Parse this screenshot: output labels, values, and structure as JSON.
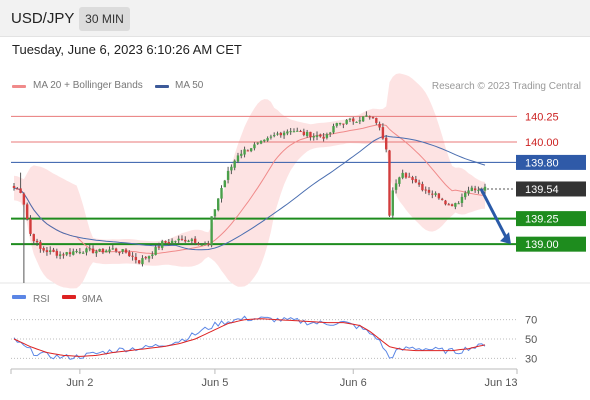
{
  "header": {
    "symbol": "USD/JPY",
    "timeframe": "30 MIN",
    "timestamp": "Tuesday, June 6, 2023 6:10:26 AM CET"
  },
  "legend": {
    "ma20_label": "MA 20 + Bollinger Bands",
    "ma50_label": "MA 50",
    "copyright": "Research © 2023 Trading Central"
  },
  "indicator_legend": {
    "rsi_label": "RSI",
    "ma9_label": "9MA"
  },
  "colors": {
    "resistance": "#e8797a",
    "support": "#1e8c1e",
    "pivot": "#2f5aa8",
    "last_price_bg": "#333333",
    "candle_up": "#4aa04a",
    "candle_down": "#d23c3c",
    "ma20": "#f08a8a",
    "ma50": "#4a6eb0",
    "bollinger": "#fde0e0",
    "rsi": "#5b86e5",
    "rsi_ma": "#dd2222",
    "forecast_arrow": "#2a5aa8"
  },
  "chart_data": [
    {
      "type": "candlestick",
      "title": "USD/JPY 30 MIN",
      "x_ticks": [
        "Jun 2",
        "Jun 5",
        "Jun 6",
        "Jun 13"
      ],
      "ylim": [
        138.62,
        140.44
      ],
      "levels": [
        {
          "value": 140.25,
          "label": "140.25",
          "kind": "resistance"
        },
        {
          "value": 140.0,
          "label": "140.00",
          "kind": "resistance"
        },
        {
          "value": 139.8,
          "label": "139.80",
          "kind": "pivot"
        },
        {
          "value": 139.54,
          "label": "139.54",
          "kind": "last"
        },
        {
          "value": 139.25,
          "label": "139.25",
          "kind": "support"
        },
        {
          "value": 139.0,
          "label": "139.00",
          "kind": "support"
        }
      ],
      "forecast_arrow": {
        "from": 139.54,
        "to": 139.0
      },
      "close_keypoints": [
        [
          0,
          139.55
        ],
        [
          2,
          139.52
        ],
        [
          3,
          139.4
        ],
        [
          5,
          139.1
        ],
        [
          8,
          138.95
        ],
        [
          14,
          138.9
        ],
        [
          20,
          138.94
        ],
        [
          26,
          138.93
        ],
        [
          30,
          138.95
        ],
        [
          34,
          138.92
        ],
        [
          38,
          138.83
        ],
        [
          41,
          138.89
        ],
        [
          45,
          139.01
        ],
        [
          50,
          139.04
        ],
        [
          54,
          139.05
        ],
        [
          57,
          139.0
        ],
        [
          59,
          138.99
        ],
        [
          60,
          139.25
        ],
        [
          61,
          139.35
        ],
        [
          63,
          139.55
        ],
        [
          65,
          139.7
        ],
        [
          68,
          139.88
        ],
        [
          72,
          139.95
        ],
        [
          76,
          140.0
        ],
        [
          80,
          140.08
        ],
        [
          84,
          140.12
        ],
        [
          88,
          140.08
        ],
        [
          92,
          140.06
        ],
        [
          95,
          140.05
        ],
        [
          98,
          140.18
        ],
        [
          101,
          140.2
        ],
        [
          104,
          140.22
        ],
        [
          107,
          140.25
        ],
        [
          110,
          140.2
        ],
        [
          112,
          140.05
        ],
        [
          113,
          139.95
        ],
        [
          114,
          139.3
        ],
        [
          115,
          139.55
        ],
        [
          118,
          139.68
        ],
        [
          121,
          139.65
        ],
        [
          124,
          139.55
        ],
        [
          127,
          139.5
        ],
        [
          130,
          139.45
        ],
        [
          132,
          139.38
        ],
        [
          135,
          139.42
        ],
        [
          138,
          139.55
        ],
        [
          141,
          139.52
        ],
        [
          143,
          139.54
        ]
      ]
    },
    {
      "type": "line",
      "title": "RSI",
      "y_ticks": [
        70,
        50,
        30
      ],
      "ylim": [
        20,
        80
      ],
      "series": [
        {
          "name": "RSI",
          "key": "rsi"
        },
        {
          "name": "9MA",
          "key": "rsi_ma"
        }
      ],
      "rsi_keypoints": [
        [
          0,
          50
        ],
        [
          3,
          42
        ],
        [
          6,
          36
        ],
        [
          10,
          33
        ],
        [
          15,
          31
        ],
        [
          20,
          32
        ],
        [
          25,
          35
        ],
        [
          30,
          38
        ],
        [
          35,
          40
        ],
        [
          40,
          41
        ],
        [
          45,
          44
        ],
        [
          50,
          48
        ],
        [
          55,
          55
        ],
        [
          58,
          60
        ],
        [
          62,
          66
        ],
        [
          66,
          69
        ],
        [
          70,
          71
        ],
        [
          75,
          71
        ],
        [
          80,
          70
        ],
        [
          85,
          69
        ],
        [
          90,
          67
        ],
        [
          95,
          66
        ],
        [
          100,
          67
        ],
        [
          105,
          62
        ],
        [
          110,
          52
        ],
        [
          112,
          42
        ],
        [
          114,
          30
        ],
        [
          116,
          37
        ],
        [
          120,
          41
        ],
        [
          125,
          40
        ],
        [
          130,
          38
        ],
        [
          135,
          37
        ],
        [
          138,
          41
        ],
        [
          141,
          42
        ],
        [
          143,
          45
        ]
      ],
      "rsi_ma_keypoints": [
        [
          0,
          50
        ],
        [
          5,
          42
        ],
        [
          10,
          36
        ],
        [
          15,
          33
        ],
        [
          20,
          32
        ],
        [
          25,
          33
        ],
        [
          30,
          36
        ],
        [
          35,
          38
        ],
        [
          40,
          40
        ],
        [
          45,
          42
        ],
        [
          50,
          45
        ],
        [
          55,
          50
        ],
        [
          60,
          58
        ],
        [
          65,
          66
        ],
        [
          70,
          70
        ],
        [
          75,
          71
        ],
        [
          80,
          70
        ],
        [
          85,
          69
        ],
        [
          90,
          68
        ],
        [
          95,
          67
        ],
        [
          100,
          67
        ],
        [
          105,
          64
        ],
        [
          108,
          58
        ],
        [
          111,
          50
        ],
        [
          114,
          42
        ],
        [
          118,
          39
        ],
        [
          122,
          38
        ],
        [
          128,
          38
        ],
        [
          133,
          38
        ],
        [
          138,
          40
        ],
        [
          143,
          44
        ]
      ]
    }
  ]
}
